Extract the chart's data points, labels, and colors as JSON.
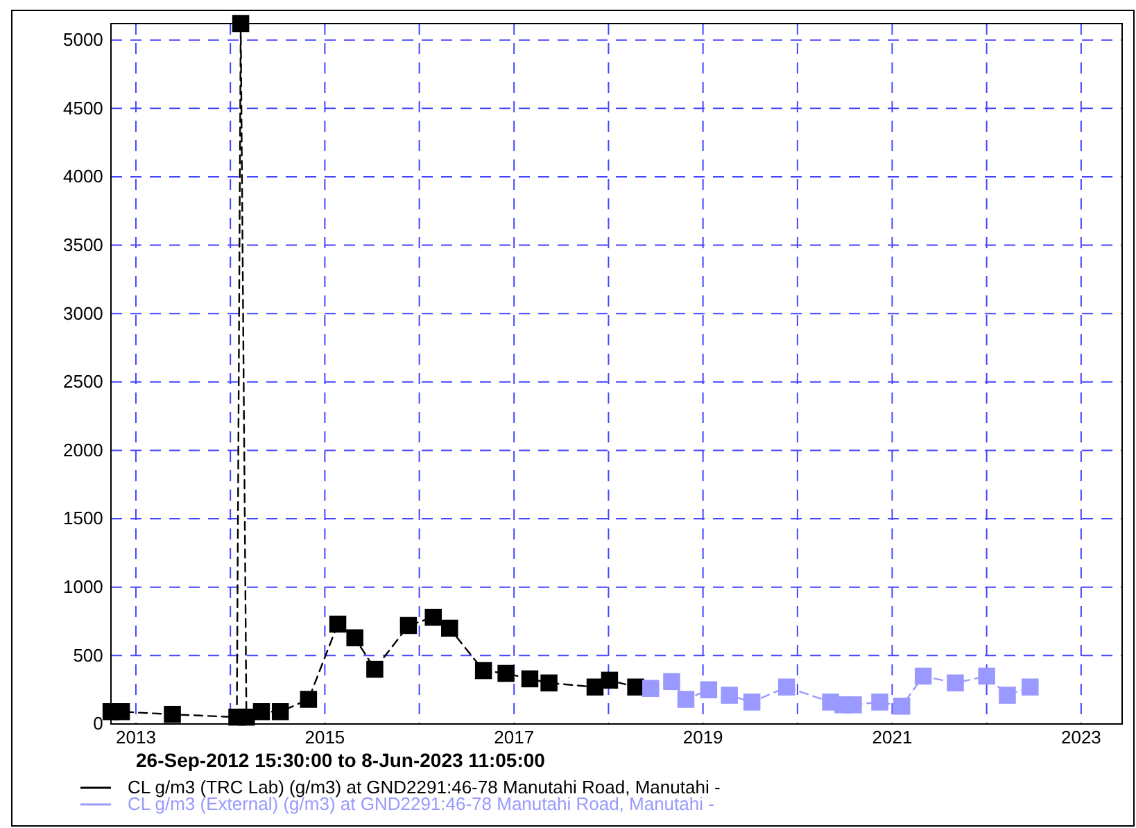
{
  "chart_data": {
    "type": "line",
    "xlabel": "26-Sep-2012 15:30:00 to  8-Jun-2023 11:05:00",
    "xlim": [
      "2012-09-26T15:30",
      "2023-06-08T11:05"
    ],
    "xticks": [
      {
        "value": "2013",
        "label": "2013"
      },
      {
        "value": "2014",
        "label": null
      },
      {
        "value": "2015",
        "label": "2015"
      },
      {
        "value": "2016",
        "label": null
      },
      {
        "value": "2017",
        "label": "2017"
      },
      {
        "value": "2018",
        "label": null
      },
      {
        "value": "2019",
        "label": "2019"
      },
      {
        "value": "2020",
        "label": null
      },
      {
        "value": "2021",
        "label": "2021"
      },
      {
        "value": "2022",
        "label": null
      },
      {
        "value": "2023",
        "label": "2023"
      }
    ],
    "ylim": [
      0,
      5120
    ],
    "yticks": [
      0,
      500,
      1000,
      1500,
      2000,
      2500,
      3000,
      3500,
      4000,
      4500,
      5000
    ],
    "grid": true,
    "legend": "bottom",
    "marker": "square",
    "line_style": "dashed",
    "series": [
      {
        "name": "CL g/m3 (TRC Lab) (g/m3) at GND2291:46-78 Manutahi Road, Manutahi -",
        "color": "#000000",
        "x": [
          "2012-09-27",
          "2012-11-06",
          "2013-05-22",
          "2014-01-26",
          "2014-02-10",
          "2014-03-04",
          "2014-05-01",
          "2014-07-13",
          "2014-10-30",
          "2015-02-20",
          "2015-04-27",
          "2015-07-13",
          "2015-11-20",
          "2016-02-24",
          "2016-04-27",
          "2016-09-05",
          "2016-12-01",
          "2017-03-03",
          "2017-05-16",
          "2017-11-10",
          "2018-01-05",
          "2018-04-16"
        ],
        "values": [
          90,
          90,
          70,
          50,
          5120,
          50,
          90,
          90,
          180,
          730,
          630,
          400,
          720,
          780,
          700,
          390,
          370,
          330,
          300,
          270,
          320,
          270
        ]
      },
      {
        "name": "CL g/m3 (External) (g/m3) at GND2291:46-78 Manutahi Road, Manutahi -",
        "color": "#9999ff",
        "x": [
          "2018-06-13",
          "2018-09-02",
          "2018-10-27",
          "2019-01-23",
          "2019-04-13",
          "2019-07-09",
          "2019-11-20",
          "2020-05-08",
          "2020-06-25",
          "2020-08-04",
          "2020-11-14",
          "2021-02-07",
          "2021-05-01",
          "2021-09-02",
          "2022-01-01",
          "2022-03-22",
          "2022-06-18"
        ],
        "values": [
          260,
          310,
          180,
          250,
          210,
          160,
          270,
          160,
          140,
          140,
          160,
          130,
          350,
          300,
          350,
          210,
          270
        ]
      }
    ]
  }
}
